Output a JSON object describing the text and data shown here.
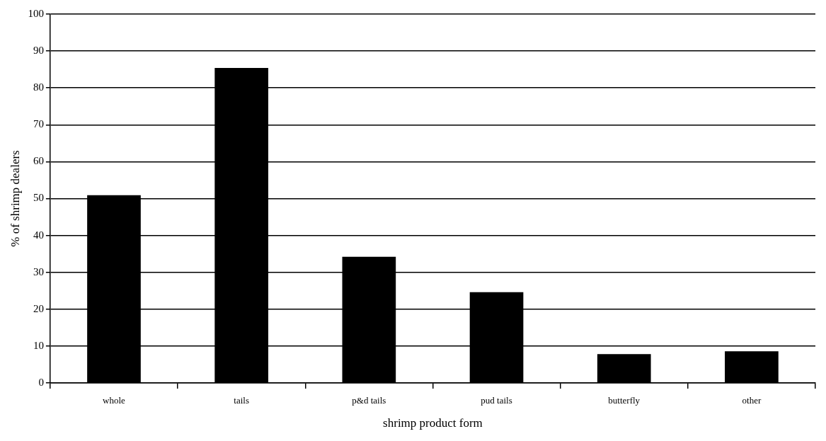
{
  "chart_data": {
    "type": "bar",
    "xlabel": "shrimp product form",
    "ylabel": "% of shrimp dealers",
    "categories": [
      "whole",
      "tails",
      "p&d tails",
      "pud tails",
      "butterfly",
      "other"
    ],
    "values": [
      50.9,
      85.4,
      34.2,
      24.6,
      7.8,
      8.6
    ],
    "color": "#000000",
    "ylim": [
      0,
      100
    ],
    "yticks": [
      0,
      10,
      20,
      30,
      40,
      50,
      60,
      70,
      80,
      90,
      100
    ],
    "grid": "y",
    "legend": false
  }
}
